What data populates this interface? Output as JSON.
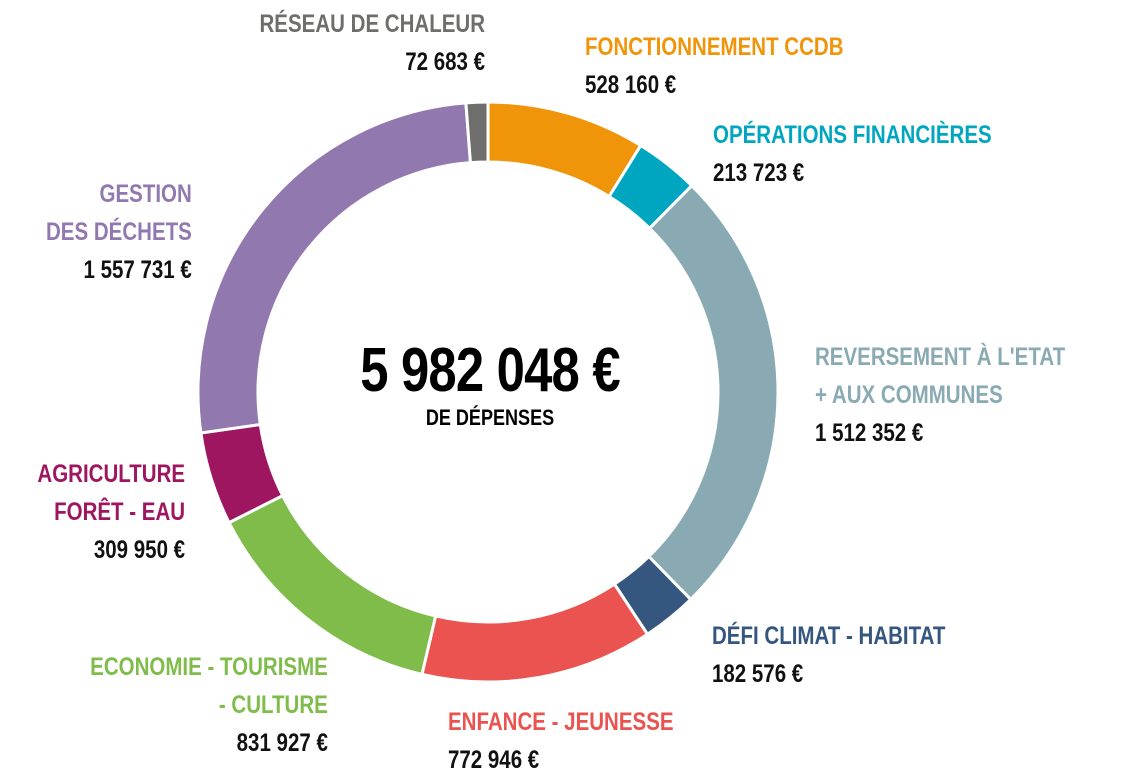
{
  "chart_data": {
    "type": "donut",
    "categories": [
      "FONCTIONNEMENT CCDB",
      "OPÉRATIONS FINANCIÈRES",
      "REVERSEMENT À L'ETAT\n+ AUX COMMUNES",
      "DÉFI CLIMAT - HABITAT",
      "ENFANCE - JEUNESSE",
      "ECONOMIE - TOURISME\n- CULTURE",
      "AGRICULTURE\nFORÊT - EAU",
      "GESTION\nDES DÉCHETS",
      "RÉSEAU DE CHALEUR"
    ],
    "values": [
      528160,
      213723,
      1512352,
      182576,
      772946,
      831927,
      309950,
      1557731,
      72683
    ],
    "value_labels": [
      "528 160 €",
      "213 723 €",
      "1 512 352 €",
      "182 576 €",
      "772 946 €",
      "831 927 €",
      "309 950 €",
      "1 557 731 €",
      "72 683 €"
    ],
    "colors": [
      "#f0950a",
      "#00a6c0",
      "#89aab3",
      "#34567f",
      "#ea534f",
      "#7fbc4a",
      "#9e1660",
      "#9179b0",
      "#6e6e6c"
    ],
    "center_label": "5 982 048 €",
    "center_sublabel": "DE DÉPENSES"
  }
}
